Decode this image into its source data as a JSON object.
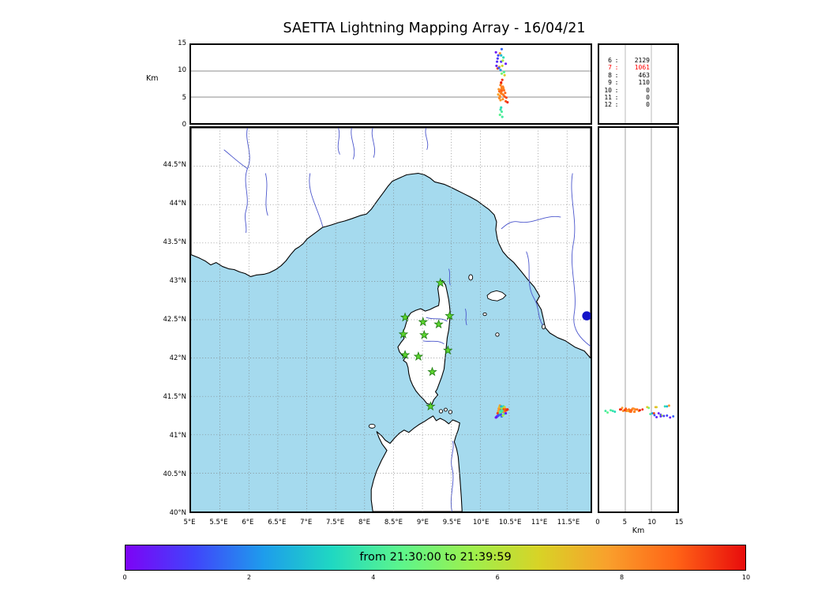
{
  "title": "SAETTA Lightning Mapping Array - 16/04/21",
  "top_panel": {
    "ylabel": "Km",
    "yticks": [
      "15",
      "10",
      "5",
      "0"
    ],
    "ylim": [
      0,
      15
    ]
  },
  "stats_panel": {
    "rows": [
      {
        "label": "6",
        "value": "2129",
        "highlight": false
      },
      {
        "label": "7",
        "value": "1061",
        "highlight": true
      },
      {
        "label": "8",
        "value": "463",
        "highlight": false
      },
      {
        "label": "9",
        "value": "110",
        "highlight": false
      },
      {
        "label": "10",
        "value": "0",
        "highlight": false
      },
      {
        "label": "11",
        "value": "0",
        "highlight": false
      },
      {
        "label": "12",
        "value": "0",
        "highlight": false
      }
    ],
    "highlight_color": "#ff0000"
  },
  "map_panel": {
    "lat_ticks": [
      "44.5°N",
      "44°N",
      "43.5°N",
      "43°N",
      "42.5°N",
      "42°N",
      "41.5°N",
      "41°N",
      "40.5°N",
      "40°N"
    ],
    "lon_ticks": [
      "5°E",
      "5.5°E",
      "6°E",
      "6.5°E",
      "7°E",
      "7.5°E",
      "8°E",
      "8.5°E",
      "9°E",
      "9.5°E",
      "10°E",
      "10.5°E",
      "11°E",
      "11.5°E"
    ],
    "lon_range": [
      5,
      11.91
    ],
    "lat_range": [
      40,
      45
    ],
    "sea_color": "#a5daee",
    "land_color": "#ffffff",
    "river_color": "#4a55cc",
    "grid_color": "#7a7a7a",
    "station_color": "#5cd42e",
    "station_edge_color": "#1d7a10",
    "marker_color": "#1414c8"
  },
  "right_panel": {
    "xticks": [
      "0",
      "5",
      "10",
      "15"
    ],
    "xlabel": "Km",
    "xlim": [
      0,
      15
    ]
  },
  "colorbar": {
    "label": "from 21:30:00 to 21:39:59",
    "ticks": [
      "0",
      "2",
      "4",
      "6",
      "8",
      "10"
    ],
    "range": [
      0,
      10
    ],
    "stops": [
      "#7d03f6",
      "#4045fb",
      "#1e9cec",
      "#1fd8c2",
      "#5cf58c",
      "#9cf04e",
      "#d8d326",
      "#f9a02c",
      "#ff6316",
      "#e80c0c"
    ]
  },
  "chart_data": [
    {
      "type": "scatter",
      "name": "lightning_sources",
      "title": "SAETTA Lightning Mapping Array - 16/04/21",
      "time_window": "from 21:30:00 to 21:39:59",
      "columns": [
        "lon_deg_e",
        "lat_deg_n",
        "alt_km",
        "time_min"
      ],
      "points": [
        [
          10.34,
          41.31,
          5.2,
          8.2
        ],
        [
          10.36,
          41.32,
          6.0,
          8.4
        ],
        [
          10.37,
          41.3,
          6.8,
          8.1
        ],
        [
          10.35,
          41.33,
          7.3,
          8.6
        ],
        [
          10.38,
          41.31,
          5.6,
          8.0
        ],
        [
          10.33,
          41.32,
          4.8,
          8.3
        ],
        [
          10.36,
          41.34,
          6.4,
          8.7
        ],
        [
          10.39,
          41.33,
          7.0,
          8.5
        ],
        [
          10.35,
          41.3,
          5.9,
          7.9
        ],
        [
          10.37,
          41.32,
          6.2,
          8.9
        ],
        [
          10.34,
          41.33,
          5.0,
          8.1
        ],
        [
          10.38,
          41.34,
          6.6,
          8.4
        ],
        [
          10.36,
          41.31,
          7.6,
          8.2
        ],
        [
          10.35,
          41.35,
          4.4,
          7.9
        ],
        [
          10.4,
          41.32,
          5.4,
          8.6
        ],
        [
          10.37,
          41.33,
          6.9,
          8.3
        ],
        [
          10.33,
          41.3,
          6.1,
          8.8
        ],
        [
          10.39,
          41.31,
          4.6,
          8.1
        ],
        [
          10.36,
          41.33,
          5.7,
          8.5
        ],
        [
          10.41,
          41.33,
          6.3,
          8.7
        ],
        [
          10.42,
          41.34,
          5.1,
          9.0
        ],
        [
          10.44,
          41.33,
          4.2,
          9.1
        ],
        [
          10.43,
          41.31,
          5.8,
          8.8
        ],
        [
          10.4,
          41.3,
          6.7,
          8.3
        ],
        [
          10.45,
          41.32,
          4.9,
          9.3
        ],
        [
          10.47,
          41.33,
          4.0,
          9.6
        ],
        [
          10.31,
          41.31,
          5.5,
          7.7
        ],
        [
          10.32,
          41.34,
          6.5,
          8.0
        ],
        [
          10.36,
          41.32,
          7.8,
          9.8
        ],
        [
          10.38,
          41.33,
          8.3,
          9.5
        ],
        [
          10.37,
          41.35,
          9.5,
          5.0
        ],
        [
          10.35,
          41.28,
          10.2,
          2.2
        ],
        [
          10.38,
          41.36,
          11.0,
          6.5
        ],
        [
          10.36,
          41.26,
          11.8,
          0.8
        ],
        [
          10.4,
          41.37,
          12.6,
          3.6
        ],
        [
          10.34,
          41.38,
          13.4,
          8.0
        ],
        [
          10.37,
          41.24,
          14.2,
          1.5
        ],
        [
          10.41,
          41.27,
          9.8,
          4.2
        ],
        [
          10.33,
          41.36,
          10.8,
          7.2
        ],
        [
          10.39,
          41.25,
          12.0,
          5.8
        ],
        [
          10.36,
          41.37,
          13.0,
          2.8
        ],
        [
          10.42,
          41.36,
          9.2,
          6.8
        ],
        [
          10.3,
          41.28,
          10.5,
          9.3
        ],
        [
          10.44,
          41.28,
          11.4,
          0.4
        ],
        [
          10.35,
          41.31,
          2.6,
          3.8
        ],
        [
          10.37,
          41.32,
          2.2,
          4.1
        ],
        [
          10.36,
          41.3,
          3.0,
          3.5
        ],
        [
          10.34,
          41.29,
          1.6,
          4.4
        ],
        [
          10.38,
          41.31,
          1.2,
          4.0
        ],
        [
          10.28,
          41.23,
          11.0,
          0.5
        ],
        [
          10.29,
          41.24,
          11.8,
          0.7
        ],
        [
          10.3,
          41.245,
          12.4,
          0.9
        ],
        [
          10.31,
          41.25,
          13.0,
          1.1
        ],
        [
          10.32,
          41.255,
          10.6,
          1.3
        ],
        [
          10.27,
          41.225,
          13.6,
          0.3
        ]
      ]
    },
    {
      "type": "table",
      "name": "counts",
      "rows": [
        [
          "6",
          2129
        ],
        [
          "7",
          1061
        ],
        [
          "8",
          463
        ],
        [
          "9",
          110
        ],
        [
          "10",
          0
        ],
        [
          "11",
          0
        ],
        [
          "12",
          0
        ]
      ],
      "highlighted": "7"
    },
    {
      "type": "scatter",
      "name": "stations",
      "marker": "star",
      "points": [
        [
          9.31,
          42.98
        ],
        [
          8.7,
          42.53
        ],
        [
          9.01,
          42.47
        ],
        [
          9.28,
          42.44
        ],
        [
          9.47,
          42.55
        ],
        [
          8.67,
          42.31
        ],
        [
          9.03,
          42.3
        ],
        [
          8.7,
          42.04
        ],
        [
          8.93,
          42.02
        ],
        [
          9.44,
          42.1
        ],
        [
          9.17,
          41.82
        ],
        [
          9.14,
          41.37
        ]
      ]
    },
    {
      "type": "scatter",
      "name": "blue_marker",
      "points": [
        [
          11.84,
          42.55
        ]
      ]
    }
  ]
}
